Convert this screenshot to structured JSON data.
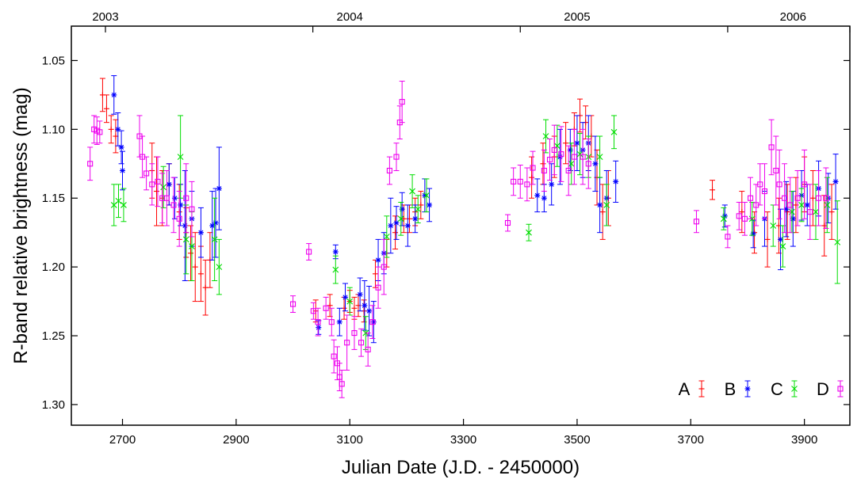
{
  "chart_data": {
    "type": "scatter",
    "xlabel": "Julian Date (J.D. - 2450000)",
    "ylabel": "R-band relative brightness (mag)",
    "xlim": [
      2610,
      3980
    ],
    "ylim": [
      1.315,
      1.025
    ],
    "y_inverted": true,
    "grid": false,
    "legend_position": "bottom-right",
    "x_ticks": [
      2700,
      2900,
      3100,
      3300,
      3500,
      3700,
      3900
    ],
    "x_tick_labels": [
      "2700",
      "2900",
      "3100",
      "3300",
      "3500",
      "3700",
      "3900"
    ],
    "y_ticks": [
      1.05,
      1.1,
      1.15,
      1.2,
      1.25,
      1.3
    ],
    "y_tick_labels": [
      "1.05",
      "1.10",
      "1.15",
      "1.20",
      "1.25",
      "1.30"
    ],
    "top_axis": {
      "ticks": [
        2670,
        3035,
        3400,
        3765,
        3980
      ],
      "labels": [
        {
          "x": 2670,
          "text": "2003"
        },
        {
          "x": 3100,
          "text": "2004"
        },
        {
          "x": 3500,
          "text": "2005"
        },
        {
          "x": 3880,
          "text": "2006"
        }
      ]
    },
    "series": [
      {
        "name": "A",
        "color": "#ff0000",
        "marker": "plus",
        "points": [
          [
            2665,
            1.075,
            0.012
          ],
          [
            2672,
            1.085,
            0.01
          ],
          [
            2680,
            1.1,
            0.01
          ],
          [
            2688,
            1.105,
            0.012
          ],
          [
            2752,
            1.13,
            0.02
          ],
          [
            2760,
            1.145,
            0.025
          ],
          [
            2770,
            1.15,
            0.02
          ],
          [
            2782,
            1.14,
            0.015
          ],
          [
            2800,
            1.16,
            0.02
          ],
          [
            2812,
            1.175,
            0.018
          ],
          [
            2820,
            1.19,
            0.02
          ],
          [
            2828,
            1.2,
            0.025
          ],
          [
            2838,
            1.205,
            0.02
          ],
          [
            2846,
            1.215,
            0.02
          ],
          [
            2854,
            1.195,
            0.02
          ],
          [
            3040,
            1.232,
            0.008
          ],
          [
            3065,
            1.228,
            0.008
          ],
          [
            3090,
            1.23,
            0.008
          ],
          [
            3100,
            1.225,
            0.008
          ],
          [
            3108,
            1.23,
            0.008
          ],
          [
            3115,
            1.228,
            0.008
          ],
          [
            3125,
            1.232,
            0.008
          ],
          [
            3145,
            1.205,
            0.01
          ],
          [
            3165,
            1.19,
            0.01
          ],
          [
            3180,
            1.175,
            0.012
          ],
          [
            3195,
            1.165,
            0.01
          ],
          [
            3205,
            1.165,
            0.01
          ],
          [
            3215,
            1.16,
            0.01
          ],
          [
            3225,
            1.155,
            0.01
          ],
          [
            3420,
            1.135,
            0.015
          ],
          [
            3440,
            1.125,
            0.015
          ],
          [
            3460,
            1.12,
            0.015
          ],
          [
            3480,
            1.11,
            0.015
          ],
          [
            3495,
            1.1,
            0.012
          ],
          [
            3505,
            1.09,
            0.012
          ],
          [
            3515,
            1.095,
            0.012
          ],
          [
            3525,
            1.105,
            0.015
          ],
          [
            3535,
            1.135,
            0.02
          ],
          [
            3545,
            1.16,
            0.02
          ],
          [
            3555,
            1.15,
            0.02
          ],
          [
            3738,
            1.144,
            0.007
          ],
          [
            3790,
            1.16,
            0.015
          ],
          [
            3812,
            1.175,
            0.015
          ],
          [
            3835,
            1.18,
            0.02
          ],
          [
            3855,
            1.17,
            0.02
          ],
          [
            3870,
            1.16,
            0.02
          ],
          [
            3885,
            1.155,
            0.02
          ],
          [
            3900,
            1.14,
            0.02
          ],
          [
            3915,
            1.15,
            0.02
          ],
          [
            3935,
            1.17,
            0.022
          ],
          [
            3948,
            1.16,
            0.02
          ]
        ]
      },
      {
        "name": "B",
        "color": "#0000ff",
        "marker": "star",
        "points": [
          [
            2685,
            1.075,
            0.014
          ],
          [
            2692,
            1.1,
            0.012
          ],
          [
            2698,
            1.113,
            0.012
          ],
          [
            2700,
            1.13,
            0.014
          ],
          [
            2782,
            1.14,
            0.015
          ],
          [
            2792,
            1.15,
            0.015
          ],
          [
            2802,
            1.155,
            0.015
          ],
          [
            2810,
            1.17,
            0.04
          ],
          [
            2822,
            1.165,
            0.02
          ],
          [
            2838,
            1.175,
            0.018
          ],
          [
            2858,
            1.17,
            0.025
          ],
          [
            2864,
            1.168,
            0.025
          ],
          [
            2870,
            1.143,
            0.03
          ],
          [
            3045,
            1.244,
            0.005
          ],
          [
            3075,
            1.189,
            0.005
          ],
          [
            3082,
            1.24,
            0.01
          ],
          [
            3092,
            1.222,
            0.01
          ],
          [
            3118,
            1.22,
            0.012
          ],
          [
            3126,
            1.228,
            0.018
          ],
          [
            3134,
            1.232,
            0.018
          ],
          [
            3142,
            1.24,
            0.015
          ],
          [
            3150,
            1.195,
            0.015
          ],
          [
            3160,
            1.19,
            0.015
          ],
          [
            3172,
            1.17,
            0.02
          ],
          [
            3182,
            1.168,
            0.012
          ],
          [
            3192,
            1.158,
            0.012
          ],
          [
            3202,
            1.17,
            0.015
          ],
          [
            3215,
            1.165,
            0.01
          ],
          [
            3232,
            1.148,
            0.012
          ],
          [
            3240,
            1.155,
            0.012
          ],
          [
            3430,
            1.148,
            0.012
          ],
          [
            3442,
            1.15,
            0.01
          ],
          [
            3455,
            1.14,
            0.015
          ],
          [
            3470,
            1.12,
            0.02
          ],
          [
            3488,
            1.115,
            0.015
          ],
          [
            3500,
            1.11,
            0.02
          ],
          [
            3510,
            1.115,
            0.02
          ],
          [
            3520,
            1.11,
            0.02
          ],
          [
            3532,
            1.125,
            0.02
          ],
          [
            3540,
            1.155,
            0.02
          ],
          [
            3552,
            1.15,
            0.02
          ],
          [
            3568,
            1.138,
            0.015
          ],
          [
            3760,
            1.163,
            0.008
          ],
          [
            3810,
            1.176,
            0.01
          ],
          [
            3830,
            1.165,
            0.02
          ],
          [
            3858,
            1.18,
            0.022
          ],
          [
            3868,
            1.158,
            0.02
          ],
          [
            3880,
            1.165,
            0.02
          ],
          [
            3895,
            1.148,
            0.018
          ],
          [
            3905,
            1.155,
            0.015
          ],
          [
            3925,
            1.143,
            0.02
          ],
          [
            3942,
            1.15,
            0.018
          ],
          [
            3955,
            1.138,
            0.02
          ]
        ]
      },
      {
        "name": "C",
        "color": "#00dd00",
        "marker": "x",
        "points": [
          [
            2685,
            1.155,
            0.015
          ],
          [
            2693,
            1.152,
            0.012
          ],
          [
            2702,
            1.155,
            0.012
          ],
          [
            2772,
            1.142,
            0.015
          ],
          [
            2802,
            1.12,
            0.03
          ],
          [
            2812,
            1.18,
            0.025
          ],
          [
            2822,
            1.185,
            0.025
          ],
          [
            2862,
            1.18,
            0.03
          ],
          [
            2870,
            1.2,
            0.02
          ],
          [
            3075,
            1.202,
            0.01
          ],
          [
            3100,
            1.225,
            0.01
          ],
          [
            3128,
            1.248,
            0.012
          ],
          [
            3165,
            1.178,
            0.015
          ],
          [
            3190,
            1.165,
            0.012
          ],
          [
            3210,
            1.145,
            0.012
          ],
          [
            3220,
            1.158,
            0.01
          ],
          [
            3235,
            1.148,
            0.012
          ],
          [
            3415,
            1.175,
            0.006
          ],
          [
            3445,
            1.105,
            0.012
          ],
          [
            3465,
            1.112,
            0.015
          ],
          [
            3490,
            1.125,
            0.015
          ],
          [
            3505,
            1.118,
            0.015
          ],
          [
            3520,
            1.12,
            0.015
          ],
          [
            3540,
            1.12,
            0.015
          ],
          [
            3552,
            1.155,
            0.015
          ],
          [
            3565,
            1.102,
            0.012
          ],
          [
            3758,
            1.165,
            0.008
          ],
          [
            3808,
            1.165,
            0.012
          ],
          [
            3845,
            1.17,
            0.015
          ],
          [
            3862,
            1.185,
            0.015
          ],
          [
            3878,
            1.16,
            0.015
          ],
          [
            3895,
            1.155,
            0.012
          ],
          [
            3920,
            1.16,
            0.02
          ],
          [
            3940,
            1.155,
            0.02
          ],
          [
            3958,
            1.182,
            0.03
          ]
        ]
      },
      {
        "name": "D",
        "color": "#ee00ee",
        "marker": "square",
        "points": [
          [
            2643,
            1.125,
            0.012
          ],
          [
            2650,
            1.1,
            0.01
          ],
          [
            2655,
            1.101,
            0.01
          ],
          [
            2660,
            1.102,
            0.008
          ],
          [
            2730,
            1.105,
            0.015
          ],
          [
            2735,
            1.12,
            0.015
          ],
          [
            2742,
            1.132,
            0.012
          ],
          [
            2752,
            1.14,
            0.015
          ],
          [
            2762,
            1.138,
            0.018
          ],
          [
            2770,
            1.15,
            0.018
          ],
          [
            2778,
            1.15,
            0.02
          ],
          [
            2790,
            1.155,
            0.02
          ],
          [
            2800,
            1.165,
            0.02
          ],
          [
            2812,
            1.15,
            0.025
          ],
          [
            2822,
            1.158,
            0.02
          ],
          [
            3000,
            1.227,
            0.006
          ],
          [
            3028,
            1.189,
            0.006
          ],
          [
            3036,
            1.232,
            0.006
          ],
          [
            3044,
            1.24,
            0.01
          ],
          [
            3058,
            1.23,
            0.008
          ],
          [
            3068,
            1.24,
            0.01
          ],
          [
            3072,
            1.265,
            0.012
          ],
          [
            3078,
            1.27,
            0.012
          ],
          [
            3082,
            1.28,
            0.01
          ],
          [
            3086,
            1.285,
            0.01
          ],
          [
            3095,
            1.255,
            0.02
          ],
          [
            3108,
            1.248,
            0.012
          ],
          [
            3120,
            1.255,
            0.01
          ],
          [
            3132,
            1.26,
            0.012
          ],
          [
            3140,
            1.24,
            0.012
          ],
          [
            3150,
            1.215,
            0.015
          ],
          [
            3160,
            1.2,
            0.02
          ],
          [
            3170,
            1.13,
            0.01
          ],
          [
            3182,
            1.12,
            0.01
          ],
          [
            3188,
            1.095,
            0.012
          ],
          [
            3192,
            1.08,
            0.015
          ],
          [
            3378,
            1.168,
            0.006
          ],
          [
            3388,
            1.138,
            0.01
          ],
          [
            3400,
            1.138,
            0.012
          ],
          [
            3412,
            1.14,
            0.012
          ],
          [
            3422,
            1.128,
            0.012
          ],
          [
            3442,
            1.13,
            0.015
          ],
          [
            3452,
            1.122,
            0.015
          ],
          [
            3460,
            1.115,
            0.018
          ],
          [
            3472,
            1.118,
            0.02
          ],
          [
            3485,
            1.13,
            0.018
          ],
          [
            3495,
            1.12,
            0.02
          ],
          [
            3510,
            1.12,
            0.02
          ],
          [
            3520,
            1.125,
            0.018
          ],
          [
            3710,
            1.167,
            0.008
          ],
          [
            3765,
            1.178,
            0.008
          ],
          [
            3785,
            1.163,
            0.01
          ],
          [
            3795,
            1.165,
            0.012
          ],
          [
            3805,
            1.15,
            0.015
          ],
          [
            3815,
            1.155,
            0.015
          ],
          [
            3822,
            1.14,
            0.015
          ],
          [
            3830,
            1.145,
            0.02
          ],
          [
            3842,
            1.113,
            0.02
          ],
          [
            3850,
            1.13,
            0.025
          ],
          [
            3856,
            1.14,
            0.025
          ],
          [
            3865,
            1.15,
            0.025
          ],
          [
            3875,
            1.155,
            0.02
          ],
          [
            3888,
            1.15,
            0.02
          ],
          [
            3900,
            1.14,
            0.025
          ],
          [
            3910,
            1.16,
            0.02
          ],
          [
            3925,
            1.15,
            0.02
          ],
          [
            3938,
            1.15,
            0.022
          ]
        ]
      }
    ]
  }
}
